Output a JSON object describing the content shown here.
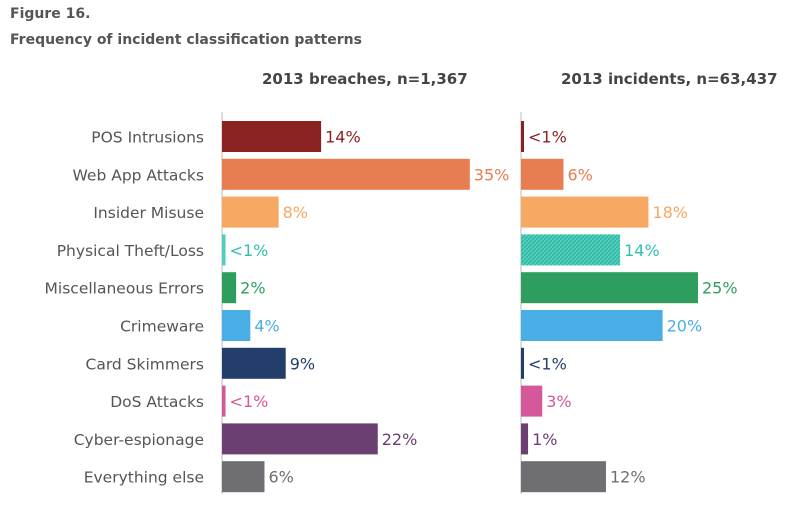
{
  "figure_label": "Figure 16.",
  "figure_title": "Frequency of incident classification patterns",
  "chart_data": {
    "type": "bar",
    "orientation": "horizontal",
    "categories": [
      "POS Intrusions",
      "Web App Attacks",
      "Insider Misuse",
      "Physical Theft/Loss",
      "Miscellaneous Errors",
      "Crimeware",
      "Card Skimmers",
      "DoS Attacks",
      "Cyber-espionage",
      "Everything else"
    ],
    "colors": [
      "#8b2222",
      "#e87d52",
      "#f7a862",
      "#4fcfbd",
      "#2e9e5f",
      "#4aaee6",
      "#233e6b",
      "#d4589a",
      "#6b3f72",
      "#6e6e73"
    ],
    "series": [
      {
        "name": "2013 breaches, n=1,367",
        "values": [
          14,
          35,
          8,
          0.5,
          2,
          4,
          9,
          0.5,
          22,
          6
        ],
        "labels": [
          "14%",
          "35%",
          "8%",
          "<1%",
          "2%",
          "4%",
          "9%",
          "<1%",
          "22%",
          "6%"
        ]
      },
      {
        "name": "2013 incidents, n=63,437",
        "values": [
          0.3,
          6,
          18,
          14,
          25,
          20,
          0.4,
          3,
          1,
          12
        ],
        "labels": [
          "<1%",
          "6%",
          "18%",
          "14%",
          "25%",
          "20%",
          "<1%",
          "3%",
          "1%",
          "12%"
        ]
      }
    ],
    "xlabel": "",
    "ylabel": ""
  }
}
